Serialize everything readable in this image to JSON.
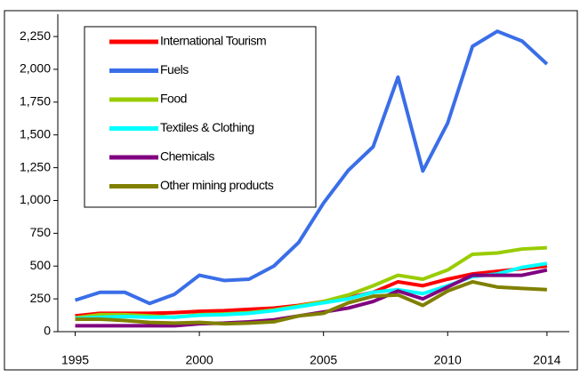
{
  "chart_data": {
    "type": "line",
    "x": [
      1995,
      1996,
      1997,
      1998,
      1999,
      2000,
      2001,
      2002,
      2003,
      2004,
      2005,
      2006,
      2007,
      2008,
      2009,
      2010,
      2011,
      2012,
      2013,
      2014
    ],
    "series": [
      {
        "name": "International Tourism",
        "color": "#ff0000",
        "values": [
          120,
          140,
          140,
          140,
          145,
          155,
          160,
          170,
          180,
          200,
          230,
          260,
          300,
          380,
          350,
          400,
          440,
          460,
          480,
          500
        ]
      },
      {
        "name": "Fuels",
        "color": "#3a6ee8",
        "values": [
          240,
          300,
          300,
          215,
          285,
          430,
          390,
          400,
          500,
          680,
          980,
          1230,
          1410,
          1940,
          1225,
          1590,
          2175,
          2290,
          2215,
          2040
        ]
      },
      {
        "name": "Food",
        "color": "#99cc00",
        "values": [
          105,
          130,
          130,
          120,
          110,
          130,
          135,
          145,
          165,
          195,
          230,
          280,
          350,
          430,
          400,
          470,
          590,
          600,
          630,
          640
        ]
      },
      {
        "name": "Textiles & Clothing",
        "color": "#00ffff",
        "values": [
          100,
          110,
          115,
          110,
          110,
          125,
          130,
          140,
          160,
          190,
          220,
          250,
          300,
          320,
          290,
          350,
          420,
          440,
          490,
          520
        ]
      },
      {
        "name": "Chemicals",
        "color": "#800080",
        "values": [
          45,
          45,
          45,
          45,
          45,
          60,
          65,
          75,
          90,
          120,
          150,
          180,
          230,
          310,
          250,
          340,
          430,
          430,
          430,
          470
        ]
      },
      {
        "name": "Other mining products",
        "color": "#808000",
        "values": [
          95,
          95,
          85,
          70,
          65,
          70,
          60,
          65,
          75,
          120,
          140,
          220,
          270,
          280,
          200,
          310,
          380,
          340,
          330,
          320
        ]
      }
    ],
    "xlim": [
      1994.3,
      2014.9
    ],
    "xticks": [
      1995,
      2000,
      2005,
      2010,
      2014
    ],
    "ylim": [
      0,
      2420
    ],
    "yticks": [
      0,
      250,
      500,
      750,
      {
        "value": 1000,
        "label": "1,000"
      },
      {
        "value": 1250,
        "label": "1,250"
      },
      {
        "value": 1500,
        "label": "1,500"
      },
      {
        "value": 1750,
        "label": "1,750"
      },
      {
        "value": 2000,
        "label": "2,000"
      },
      {
        "value": 2250,
        "label": "2,250"
      }
    ],
    "grid": false,
    "legend": "upper-left"
  }
}
